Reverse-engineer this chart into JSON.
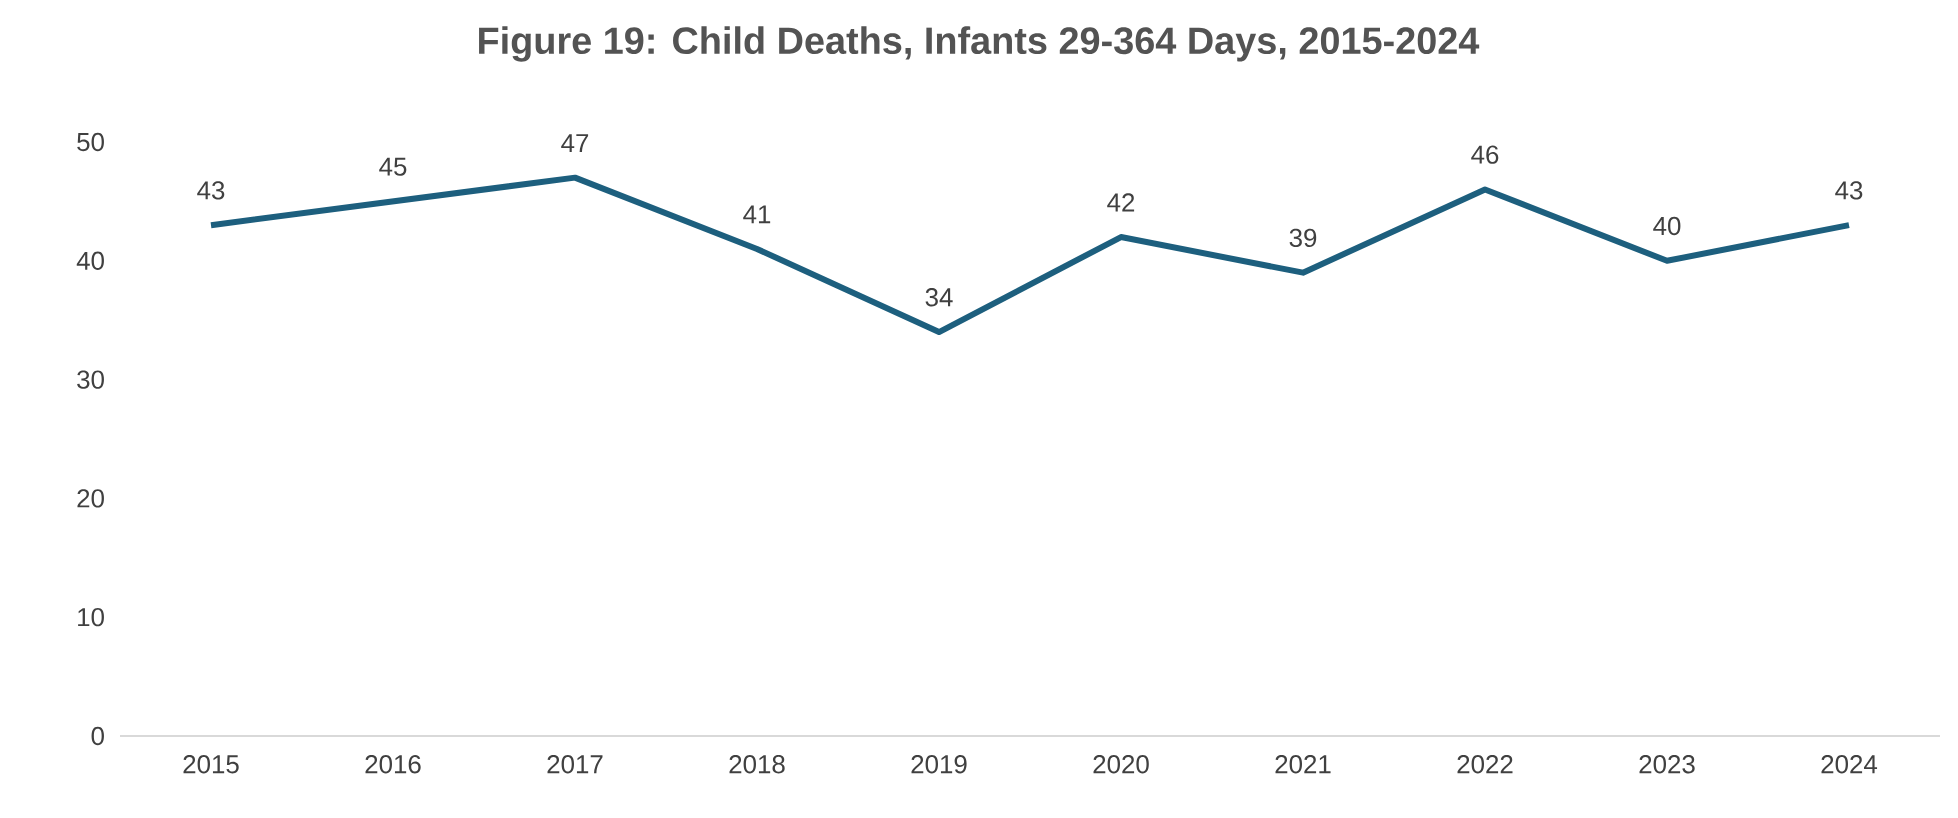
{
  "chart_data": {
    "type": "line",
    "title": "Figure 19: Child Deaths, Infants 29-364 Days, 2015-2024",
    "categories": [
      "2015",
      "2016",
      "2017",
      "2018",
      "2019",
      "2020",
      "2021",
      "2022",
      "2023",
      "2024"
    ],
    "values": [
      43,
      45,
      47,
      41,
      34,
      42,
      39,
      46,
      40,
      43
    ],
    "color": "#1d5f7e",
    "ylim": [
      0,
      50
    ],
    "yticks": [
      0,
      10,
      20,
      30,
      40,
      50
    ],
    "data_labels": true
  }
}
